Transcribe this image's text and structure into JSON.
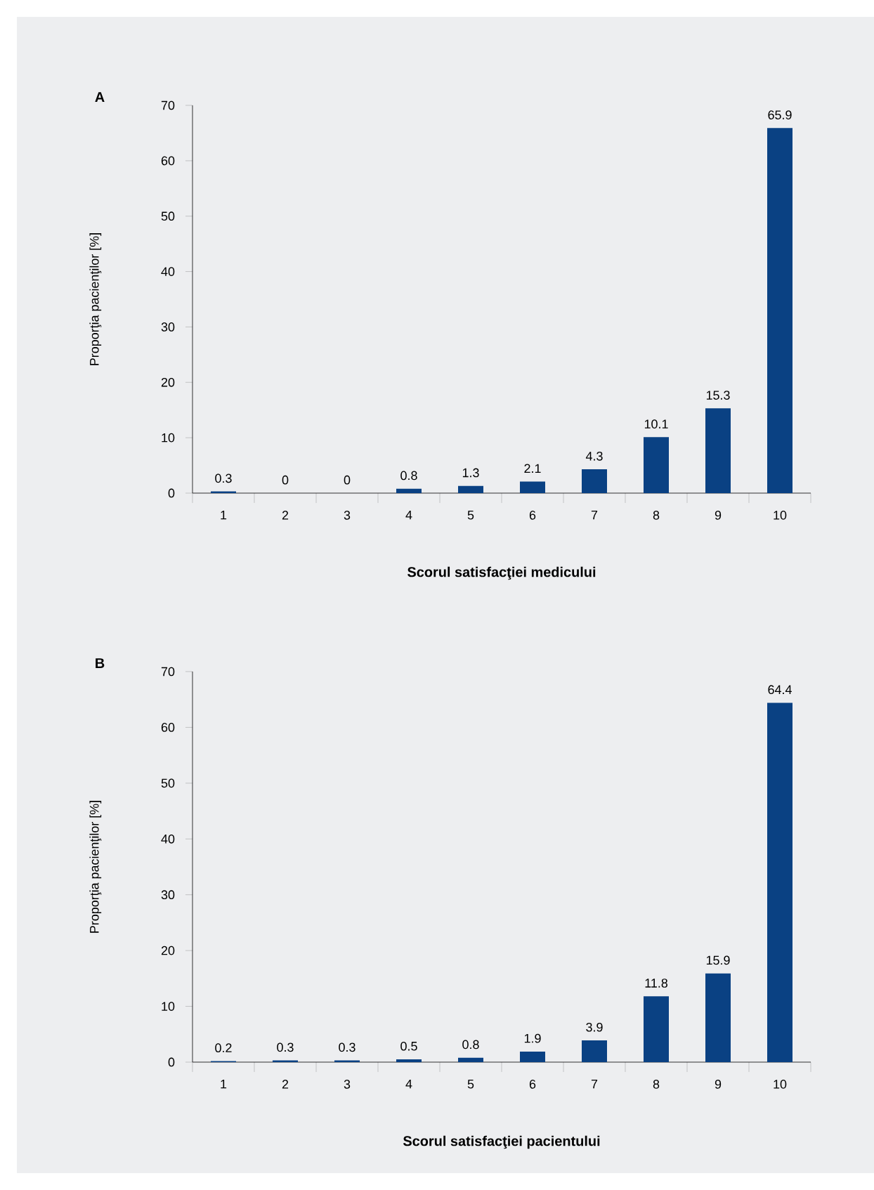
{
  "chart_data": [
    {
      "type": "bar",
      "title": "A",
      "xlabel": "Scorul satisfacţiei medicului",
      "ylabel": "Proporţia pacienţilor [%]",
      "categories": [
        "1",
        "2",
        "3",
        "4",
        "5",
        "6",
        "7",
        "8",
        "9",
        "10"
      ],
      "values": [
        0.3,
        0,
        0,
        0.8,
        1.3,
        2.1,
        4.3,
        10.1,
        15.3,
        65.9
      ],
      "color": "#0a4183",
      "ylim": [
        0,
        70
      ],
      "yticks": [
        0,
        10,
        20,
        30,
        40,
        50,
        60,
        70
      ],
      "data_labels": true
    },
    {
      "type": "bar",
      "title": "B",
      "xlabel": "Scorul satisfacţiei pacientului",
      "ylabel": "Proporţia pacienţilor [%]",
      "categories": [
        "1",
        "2",
        "3",
        "4",
        "5",
        "6",
        "7",
        "8",
        "9",
        "10"
      ],
      "values": [
        0.2,
        0.3,
        0.3,
        0.5,
        0.8,
        1.9,
        3.9,
        11.8,
        15.9,
        64.4
      ],
      "color": "#0a4183",
      "ylim": [
        0,
        70
      ],
      "yticks": [
        0,
        10,
        20,
        30,
        40,
        50,
        60,
        70
      ],
      "data_labels": true
    }
  ]
}
